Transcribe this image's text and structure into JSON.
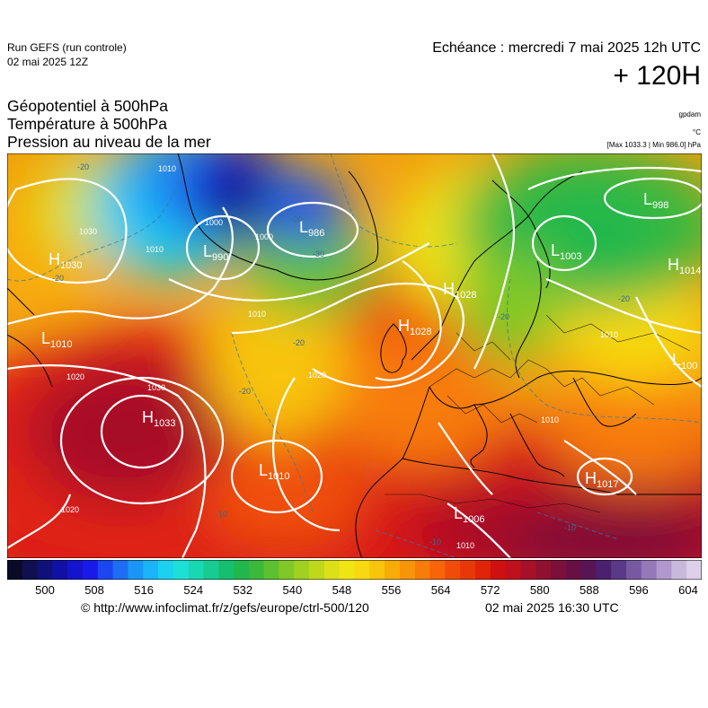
{
  "header": {
    "run_label": "Run GEFS (run controle)",
    "run_date": "02 mai 2025 12Z",
    "echeance": "Echéance : mercredi 7 mai 2025 12h UTC",
    "lead_time": "+ 120H",
    "title_lines": [
      "Géopotentiel à 500hPa",
      "Température à 500hPa",
      "Pression au niveau de la mer"
    ],
    "unit_geopot": "gpdam",
    "unit_temp": "°C",
    "pressure_range": "[Max 1033.3 | Min 986.0] hPa"
  },
  "pressure_centers": [
    {
      "type": "H",
      "value": "1033"
    },
    {
      "type": "L",
      "value": "990"
    },
    {
      "type": "L",
      "value": "986"
    },
    {
      "type": "L",
      "value": "998"
    },
    {
      "type": "L",
      "value": "1003"
    },
    {
      "type": "H",
      "value": "1028"
    },
    {
      "type": "H",
      "value": "1028"
    },
    {
      "type": "H",
      "value": "1014"
    },
    {
      "type": "L",
      "value": "1010"
    },
    {
      "type": "L",
      "value": "1010"
    },
    {
      "type": "L",
      "value": "1006"
    },
    {
      "type": "H",
      "value": "1017"
    },
    {
      "type": "L",
      "value": "100"
    },
    {
      "type": "H",
      "value": "1030"
    }
  ],
  "isobar_labels": [
    "1000",
    "1000",
    "1010",
    "1020",
    "1030",
    "1030",
    "1020",
    "1010",
    "1020",
    "1010",
    "1010",
    "1010",
    "1010"
  ],
  "temp_labels": [
    "-20",
    "-20",
    "-20",
    "-10",
    "-20",
    "-20",
    "-30",
    "-30",
    "-10",
    "-10",
    "-20"
  ],
  "colorbar": {
    "ticks": [
      "500",
      "508",
      "516",
      "524",
      "532",
      "540",
      "548",
      "556",
      "564",
      "572",
      "580",
      "588",
      "596",
      "604"
    ],
    "colors": [
      "#0a0a28",
      "#101050",
      "#10107a",
      "#1010a4",
      "#1414cc",
      "#1a1ae8",
      "#1c46f0",
      "#1c6ef4",
      "#1a96f8",
      "#1ab4f8",
      "#1cd0f0",
      "#1ce0d8",
      "#18d8b4",
      "#16cc90",
      "#14c070",
      "#20b84c",
      "#3cb83c",
      "#5cc030",
      "#80c828",
      "#a0d020",
      "#c0d81c",
      "#dce018",
      "#f0e414",
      "#f8d810",
      "#f8c40c",
      "#f8ac08",
      "#f89408",
      "#f87c08",
      "#f86408",
      "#f04c08",
      "#e83808",
      "#e02408",
      "#d01010",
      "#c0101c",
      "#a81028",
      "#901030",
      "#7c1038",
      "#681044",
      "#581454",
      "#4c2070",
      "#5c3888",
      "#7858a0",
      "#9478b8",
      "#b098cc",
      "#c8b8dc",
      "#ddd0e8"
    ]
  },
  "footer": {
    "url": "© http://www.infoclimat.fr/z/gefs/europe/ctrl-500/120",
    "issued": "02 mai 2025 16:30 UTC"
  }
}
